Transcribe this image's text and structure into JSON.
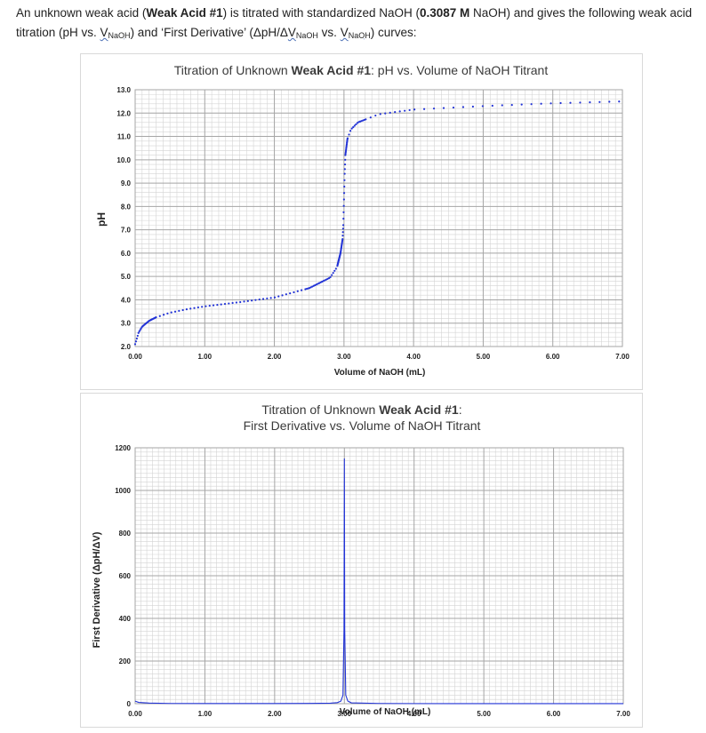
{
  "intro": {
    "l1a": "An unknown weak acid (",
    "l1b": "Weak Acid #1",
    "l1c": ") is titrated with standardized NaOH (",
    "l1d": "0.3087 M",
    "l1e": " NaOH) and gives the following weak acid",
    "l2a": "titration (pH vs. ",
    "l2b": "V",
    "l2c": "NaOH",
    "l2d": ") and ‘First Derivative’ (ΔpH/Δ",
    "l2e": "V",
    "l2f": "NaOH",
    "l2g": " vs. ",
    "l2h": "V",
    "l2i": "NaOH",
    "l2j": ") curves:"
  },
  "colors": {
    "series": "#2233d6",
    "grid_major": "#a6a6a6",
    "grid_minor": "#d4d4d4",
    "frame": "#d9d9d9"
  },
  "chart_data": [
    {
      "type": "scatter",
      "title_pre": "Titration of Unknown ",
      "title_bold": "Weak Acid #1",
      "title_post": ": pH vs. Volume of NaOH Titrant",
      "xlabel": "Volume of NaOH (mL)",
      "ylabel": "pH",
      "xlim": [
        0,
        7
      ],
      "ylim": [
        2,
        13
      ],
      "grid": true,
      "x_ticks": [
        "0.00",
        "1.00",
        "2.00",
        "3.00",
        "4.00",
        "5.00",
        "6.00",
        "7.00"
      ],
      "y_ticks": [
        "2.0",
        "3.0",
        "4.0",
        "5.0",
        "6.0",
        "7.0",
        "8.0",
        "9.0",
        "10.0",
        "11.0",
        "12.0",
        "13.0"
      ],
      "series": [
        {
          "x": [
            0,
            0.05,
            0.1,
            0.2,
            0.3,
            0.5,
            0.75,
            1.0,
            1.5,
            2.0,
            2.5,
            2.8,
            2.9,
            2.95,
            2.98,
            2.99,
            3.0,
            3.01,
            3.02,
            3.05,
            3.1,
            3.2,
            3.5,
            4.0,
            5.0,
            6.0,
            7.0
          ],
          "y": [
            2.1,
            2.6,
            2.85,
            3.1,
            3.25,
            3.45,
            3.6,
            3.72,
            3.9,
            4.1,
            4.5,
            4.95,
            5.4,
            6.0,
            6.6,
            7.2,
            8.3,
            9.4,
            10.2,
            10.9,
            11.3,
            11.6,
            11.95,
            12.15,
            12.3,
            12.42,
            12.5
          ]
        }
      ]
    },
    {
      "type": "line",
      "title_l1_pre": "Titration of Unknown ",
      "title_l1_bold": "Weak Acid #1",
      "title_l1_post": ":",
      "title_l2": "First Derivative vs. Volume of NaOH Titrant",
      "xlabel": "Volume of NaOH (mL)",
      "ylabel": "First Derivative (ΔpH/ΔV)",
      "xlim": [
        0,
        7
      ],
      "ylim": [
        0,
        1200
      ],
      "grid": true,
      "x_ticks": [
        "0.00",
        "1.00",
        "2.00",
        "3.00",
        "4.00",
        "5.00",
        "6.00",
        "7.00"
      ],
      "y_ticks": [
        "0",
        "200",
        "400",
        "600",
        "800",
        "1000",
        "1200"
      ],
      "series": [
        {
          "x": [
            0,
            0.05,
            0.2,
            0.5,
            1.0,
            1.5,
            2.0,
            2.5,
            2.8,
            2.9,
            2.95,
            2.98,
            2.995,
            3.0,
            3.005,
            3.02,
            3.05,
            3.1,
            3.5,
            4.0,
            5.0,
            6.0,
            7.0
          ],
          "y": [
            12,
            6,
            3,
            1,
            0.6,
            0.6,
            0.7,
            1.2,
            2.5,
            5,
            12,
            40,
            350,
            1150,
            350,
            40,
            12,
            4,
            1,
            0.5,
            0.2,
            0.1,
            0.1
          ]
        }
      ]
    }
  ]
}
